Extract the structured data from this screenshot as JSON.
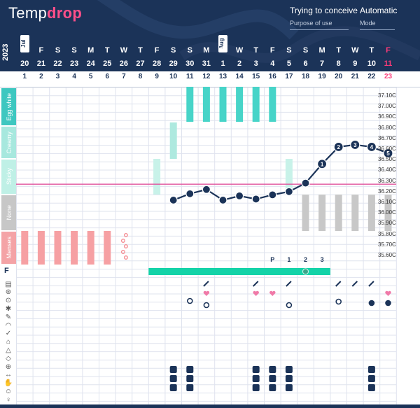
{
  "header": {
    "logo_text_a": "Temp",
    "logo_text_b": "drop",
    "purpose_value": "Trying to conceive",
    "purpose_label": "Purpose of use",
    "mode_value": "Automatic",
    "mode_label": "Mode",
    "year": "2023",
    "month_tags": [
      "Jul",
      "Aug"
    ],
    "cd_label": "CD",
    "colors": {
      "header_bg": "#1b3358",
      "pink": "#ff3b7a",
      "teal": "#5ed3c8",
      "temp_line": "#1b3358",
      "coverline": "#e0529c"
    }
  },
  "days": [
    {
      "wd": "T",
      "dn": "20",
      "cd": "1"
    },
    {
      "wd": "F",
      "dn": "21",
      "cd": "2"
    },
    {
      "wd": "S",
      "dn": "22",
      "cd": "3"
    },
    {
      "wd": "S",
      "dn": "23",
      "cd": "4"
    },
    {
      "wd": "M",
      "dn": "24",
      "cd": "5"
    },
    {
      "wd": "T",
      "dn": "25",
      "cd": "6"
    },
    {
      "wd": "W",
      "dn": "26",
      "cd": "7"
    },
    {
      "wd": "T",
      "dn": "27",
      "cd": "8"
    },
    {
      "wd": "F",
      "dn": "28",
      "cd": "9"
    },
    {
      "wd": "S",
      "dn": "29",
      "cd": "10"
    },
    {
      "wd": "S",
      "dn": "30",
      "cd": "11"
    },
    {
      "wd": "M",
      "dn": "31",
      "cd": "12"
    },
    {
      "wd": "T",
      "dn": "1",
      "cd": "13"
    },
    {
      "wd": "W",
      "dn": "2",
      "cd": "14"
    },
    {
      "wd": "T",
      "dn": "3",
      "cd": "15"
    },
    {
      "wd": "F",
      "dn": "4",
      "cd": "16"
    },
    {
      "wd": "S",
      "dn": "5",
      "cd": "17"
    },
    {
      "wd": "S",
      "dn": "6",
      "cd": "18"
    },
    {
      "wd": "M",
      "dn": "7",
      "cd": "19"
    },
    {
      "wd": "T",
      "dn": "8",
      "cd": "20"
    },
    {
      "wd": "W",
      "dn": "9",
      "cd": "21"
    },
    {
      "wd": "T",
      "dn": "10",
      "cd": "22"
    },
    {
      "wd": "F",
      "dn": "11",
      "cd": "23"
    }
  ],
  "phases": [
    "Egg white",
    "Creamy",
    "Sticky",
    "None",
    "Menses"
  ],
  "temp_labels": [
    "37.10C",
    "37.00C",
    "36.90C",
    "36.80C",
    "36.70C",
    "36.60C",
    "36.50C",
    "36.40C",
    "36.30C",
    "36.20C",
    "36.10C",
    "36.00C",
    "35.90C",
    "35.80C",
    "35.70C",
    "35.60C"
  ],
  "fertility_label": "F",
  "fertile_markers": [
    "P",
    "1",
    "2",
    "3"
  ],
  "chart_data": {
    "type": "line",
    "x": [
      10,
      11,
      12,
      13,
      14,
      15,
      16,
      17,
      18,
      19,
      20,
      21,
      22,
      23
    ],
    "y": [
      36.12,
      36.18,
      36.22,
      36.12,
      36.16,
      36.13,
      36.17,
      36.2,
      36.28,
      36.46,
      36.62,
      36.64,
      36.62,
      36.56
    ],
    "point_labels": [
      "",
      "",
      "",
      "",
      "",
      "",
      "",
      "",
      "",
      "1",
      "2",
      "3",
      "4",
      "5"
    ],
    "ylim": [
      35.55,
      37.15
    ],
    "coverline": 36.27,
    "ylabel": ""
  }
}
